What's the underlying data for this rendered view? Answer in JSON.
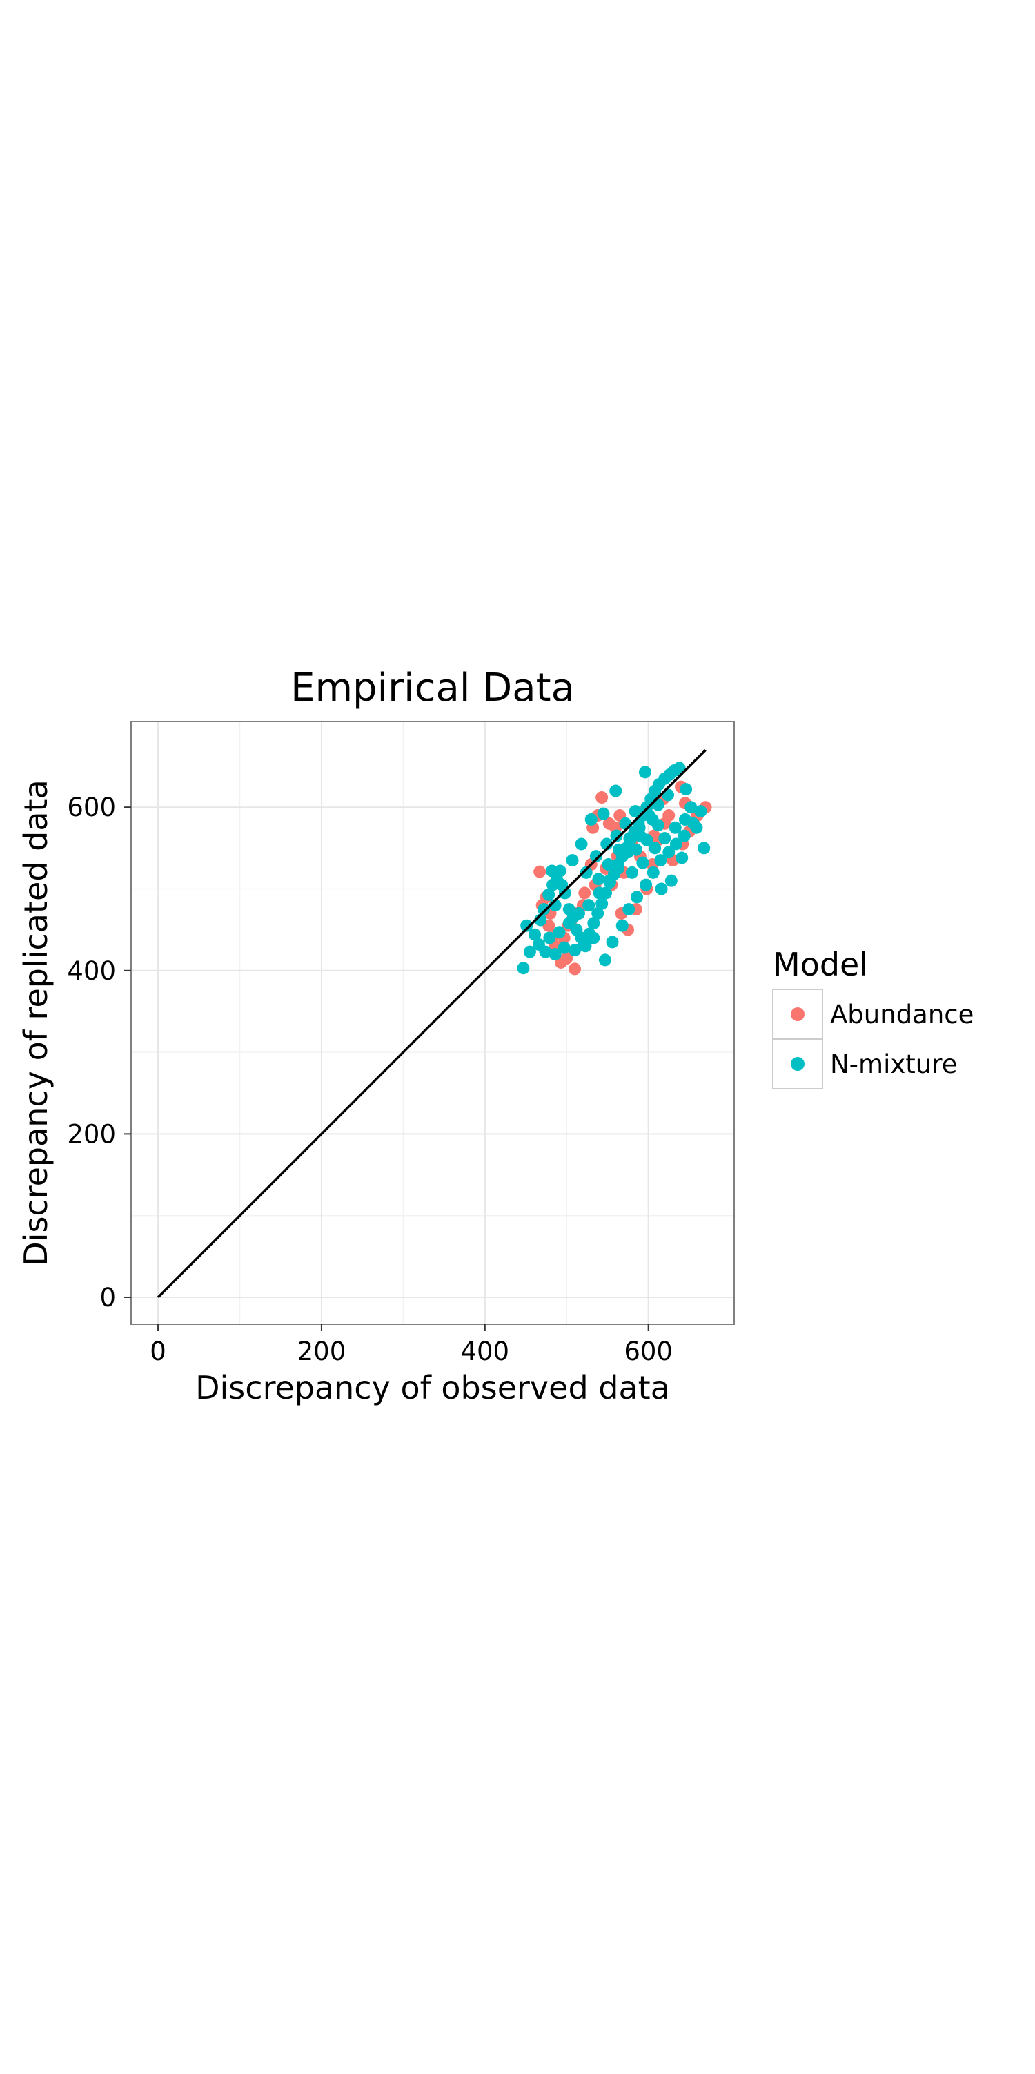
{
  "chart_data": {
    "type": "scatter",
    "title": "Empirical Data",
    "xlabel": "Discrepancy of observed data",
    "ylabel": "Discrepancy of replicated data",
    "xlim": [
      -33,
      705
    ],
    "ylim": [
      -33,
      705
    ],
    "x_ticks": [
      0,
      200,
      400,
      600
    ],
    "y_ticks": [
      0,
      200,
      400,
      600
    ],
    "grid": true,
    "reference_line": {
      "from": [
        0,
        0
      ],
      "to": [
        670,
        670
      ],
      "color": "#000000"
    },
    "legend": {
      "title": "Model",
      "position": "right"
    },
    "series": [
      {
        "name": "Abundance",
        "color": "#F8766D",
        "points": [
          [
            467,
            521
          ],
          [
            475,
            490
          ],
          [
            480,
            470
          ],
          [
            486,
            430
          ],
          [
            493,
            410
          ],
          [
            500,
            415
          ],
          [
            510,
            402
          ],
          [
            497,
            440
          ],
          [
            505,
            460
          ],
          [
            520,
            480
          ],
          [
            530,
            530
          ],
          [
            532,
            575
          ],
          [
            538,
            590
          ],
          [
            543,
            612
          ],
          [
            552,
            580
          ],
          [
            560,
            575
          ],
          [
            565,
            590
          ],
          [
            567,
            470
          ],
          [
            575,
            450
          ],
          [
            585,
            475
          ],
          [
            598,
            500
          ],
          [
            605,
            530
          ],
          [
            612,
            560
          ],
          [
            620,
            580
          ],
          [
            630,
            535
          ],
          [
            642,
            555
          ],
          [
            650,
            570
          ],
          [
            660,
            590
          ],
          [
            670,
            600
          ],
          [
            640,
            625
          ],
          [
            618,
            610
          ],
          [
            595,
            595
          ],
          [
            580,
            555
          ],
          [
            562,
            540
          ],
          [
            548,
            525
          ],
          [
            535,
            505
          ],
          [
            522,
            495
          ],
          [
            512,
            470
          ],
          [
            502,
            455
          ],
          [
            488,
            445
          ],
          [
            478,
            455
          ],
          [
            470,
            480
          ],
          [
            555,
            505
          ],
          [
            570,
            520
          ],
          [
            590,
            540
          ],
          [
            607,
            565
          ],
          [
            625,
            590
          ],
          [
            645,
            605
          ]
        ]
      },
      {
        "name": "N-mixture",
        "color": "#00BFC4",
        "points": [
          [
            447,
            403
          ],
          [
            451,
            455
          ],
          [
            455,
            423
          ],
          [
            461,
            444
          ],
          [
            468,
            462
          ],
          [
            472,
            475
          ],
          [
            478,
            493
          ],
          [
            483,
            505
          ],
          [
            488,
            512
          ],
          [
            492,
            522
          ],
          [
            498,
            495
          ],
          [
            503,
            475
          ],
          [
            508,
            465
          ],
          [
            512,
            450
          ],
          [
            518,
            440
          ],
          [
            523,
            430
          ],
          [
            528,
            445
          ],
          [
            533,
            458
          ],
          [
            538,
            470
          ],
          [
            543,
            482
          ],
          [
            548,
            495
          ],
          [
            553,
            508
          ],
          [
            558,
            518
          ],
          [
            563,
            530
          ],
          [
            568,
            540
          ],
          [
            573,
            550
          ],
          [
            578,
            560
          ],
          [
            583,
            570
          ],
          [
            588,
            580
          ],
          [
            593,
            590
          ],
          [
            598,
            600
          ],
          [
            603,
            610
          ],
          [
            608,
            620
          ],
          [
            613,
            628
          ],
          [
            620,
            635
          ],
          [
            626,
            640
          ],
          [
            632,
            645
          ],
          [
            638,
            648
          ],
          [
            646,
            622
          ],
          [
            652,
            600
          ],
          [
            659,
            575
          ],
          [
            668,
            550
          ],
          [
            596,
            643
          ],
          [
            560,
            620
          ],
          [
            545,
            592
          ],
          [
            530,
            585
          ],
          [
            518,
            555
          ],
          [
            507,
            535
          ],
          [
            494,
            505
          ],
          [
            486,
            480
          ],
          [
            479,
            440
          ],
          [
            474,
            423
          ],
          [
            486,
            420
          ],
          [
            497,
            428
          ],
          [
            510,
            425
          ],
          [
            521,
            433
          ],
          [
            533,
            440
          ],
          [
            547,
            413
          ],
          [
            556,
            435
          ],
          [
            568,
            455
          ],
          [
            576,
            475
          ],
          [
            586,
            490
          ],
          [
            597,
            505
          ],
          [
            606,
            520
          ],
          [
            615,
            535
          ],
          [
            625,
            545
          ],
          [
            634,
            555
          ],
          [
            644,
            565
          ],
          [
            655,
            580
          ],
          [
            664,
            595
          ],
          [
            605,
            585
          ],
          [
            590,
            565
          ],
          [
            575,
            545
          ],
          [
            563,
            525
          ],
          [
            552,
            510
          ],
          [
            540,
            495
          ],
          [
            527,
            480
          ],
          [
            515,
            470
          ],
          [
            503,
            458
          ],
          [
            491,
            447
          ],
          [
            539,
            512
          ],
          [
            551,
            530
          ],
          [
            564,
            548
          ],
          [
            577,
            562
          ],
          [
            589,
            575
          ],
          [
            601,
            590
          ],
          [
            612,
            603
          ],
          [
            624,
            615
          ],
          [
            580,
            520
          ],
          [
            593,
            532
          ],
          [
            608,
            550
          ],
          [
            620,
            562
          ],
          [
            633,
            575
          ],
          [
            645,
            585
          ],
          [
            466,
            432
          ],
          [
            482,
            522
          ],
          [
            524,
            520
          ],
          [
            536,
            540
          ],
          [
            549,
            555
          ],
          [
            561,
            565
          ],
          [
            572,
            580
          ],
          [
            584,
            595
          ],
          [
            616,
            500
          ],
          [
            628,
            510
          ],
          [
            641,
            538
          ],
          [
            612,
            578
          ],
          [
            598,
            560
          ],
          [
            585,
            548
          ]
        ]
      }
    ]
  }
}
